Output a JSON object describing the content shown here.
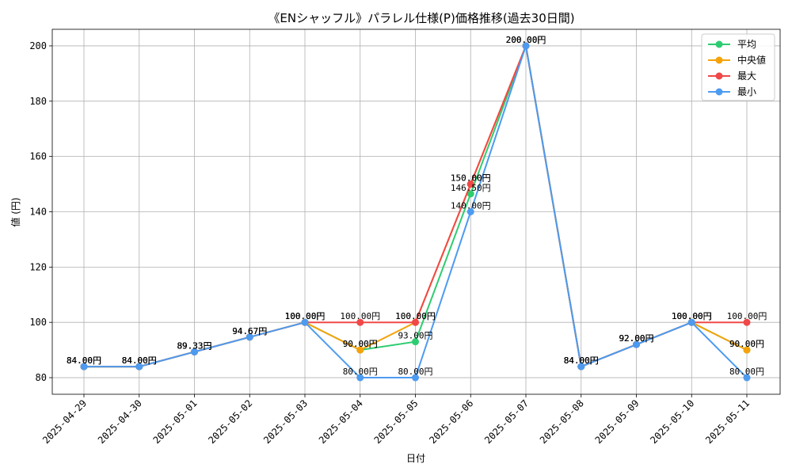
{
  "chart_data": {
    "type": "line",
    "title": "《ENシャッフル》パラレル仕様(P)価格推移(過去30日間)",
    "xlabel": "日付",
    "ylabel": "値 (円)",
    "ylim": [
      74,
      206
    ],
    "yticks": [
      80,
      100,
      120,
      140,
      160,
      180,
      200
    ],
    "grid": true,
    "legend_position": "top-right",
    "categories": [
      "2025-04-29",
      "2025-04-30",
      "2025-05-01",
      "2025-05-02",
      "2025-05-03",
      "2025-05-04",
      "2025-05-05",
      "2025-05-06",
      "2025-05-07",
      "2025-05-08",
      "2025-05-09",
      "2025-05-10",
      "2025-05-11"
    ],
    "series": [
      {
        "name": "平均",
        "color": "#2ecc71",
        "values": [
          84,
          84,
          89.33,
          94.67,
          100,
          90,
          93,
          146.5,
          200,
          84,
          92,
          100,
          90
        ]
      },
      {
        "name": "中央値",
        "color": "#f5a30a",
        "values": [
          84,
          84,
          89.33,
          94.67,
          100,
          90,
          100,
          150,
          200,
          84,
          92,
          100,
          90
        ]
      },
      {
        "name": "最大",
        "color": "#f04848",
        "values": [
          84,
          84,
          89.33,
          94.67,
          100,
          100,
          100,
          150,
          200,
          84,
          92,
          100,
          100
        ]
      },
      {
        "name": "最小",
        "color": "#4d9bf0",
        "values": [
          84,
          84,
          89.33,
          94.67,
          100,
          80,
          80,
          140,
          200,
          84,
          92,
          100,
          80
        ]
      }
    ],
    "value_suffix": "円"
  }
}
